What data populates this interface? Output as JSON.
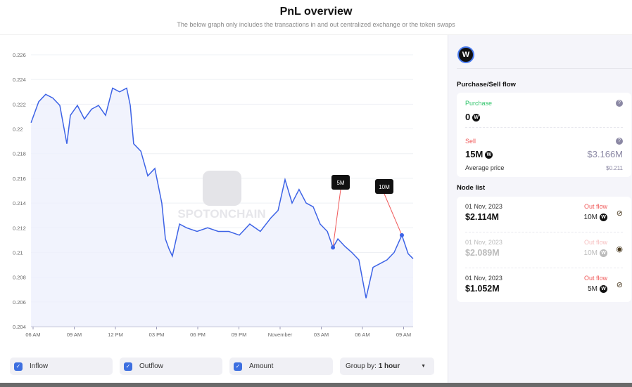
{
  "header": {
    "title": "PnL overview",
    "subtitle": "The below graph only includes the transactions in and out centralized exchange or the token swaps"
  },
  "chart_data": {
    "type": "line",
    "title": "",
    "xlabel": "",
    "ylabel": "",
    "ylim": [
      0.204,
      0.226
    ],
    "y_ticks": [
      "0.204",
      "0.206",
      "0.208",
      "0.21",
      "0.212",
      "0.214",
      "0.216",
      "0.218",
      "0.22",
      "0.222",
      "0.224",
      "0.226"
    ],
    "x_ticks": [
      {
        "t": 0,
        "label": "06 AM"
      },
      {
        "t": 3,
        "label": "09 AM"
      },
      {
        "t": 6,
        "label": "12 PM"
      },
      {
        "t": 9,
        "label": "03 PM"
      },
      {
        "t": 12,
        "label": "06 PM"
      },
      {
        "t": 15,
        "label": "09 PM"
      },
      {
        "t": 18,
        "label": "November"
      },
      {
        "t": 21,
        "label": "03 AM"
      },
      {
        "t": 24,
        "label": "06 AM"
      },
      {
        "t": 27,
        "label": "09 AM"
      }
    ],
    "xlim": [
      -0.15,
      27.7
    ],
    "x_unit": "hours since 06 AM",
    "series": [
      {
        "name": "Price",
        "color": "#3d63e6",
        "x": [
          -0.15,
          0.41,
          0.92,
          1.44,
          1.95,
          2.46,
          2.72,
          3.23,
          3.74,
          4.26,
          4.77,
          5.28,
          5.79,
          6.31,
          6.82,
          7.08,
          7.33,
          7.85,
          8.36,
          8.87,
          9.38,
          9.64,
          9.9,
          10.15,
          10.67,
          11.18,
          11.95,
          12.72,
          13.49,
          14.26,
          15.03,
          15.79,
          16.56,
          17.33,
          17.85,
          18.36,
          18.87,
          19.38,
          19.9,
          20.41,
          20.92,
          21.44,
          21.85,
          22.21,
          22.72,
          23.23,
          23.74,
          24.26,
          24.77,
          25.28,
          25.79,
          26.31,
          26.87,
          27.33,
          27.69
        ],
        "y": [
          0.2205,
          0.2222,
          0.2228,
          0.2225,
          0.2219,
          0.2188,
          0.2211,
          0.2219,
          0.2208,
          0.2216,
          0.2219,
          0.2211,
          0.2233,
          0.223,
          0.2233,
          0.2219,
          0.2188,
          0.2182,
          0.2162,
          0.2168,
          0.214,
          0.2111,
          0.2103,
          0.2097,
          0.2123,
          0.212,
          0.2117,
          0.212,
          0.2117,
          0.2117,
          0.2114,
          0.2123,
          0.2117,
          0.2128,
          0.2134,
          0.2159,
          0.214,
          0.2151,
          0.214,
          0.2137,
          0.2123,
          0.2117,
          0.2104,
          0.2111,
          0.2105,
          0.21,
          0.2094,
          0.2063,
          0.2088,
          0.2091,
          0.2094,
          0.21,
          0.2114,
          0.2099,
          0.2095
        ]
      }
    ],
    "annotations": [
      {
        "label": "5M",
        "x": 21.85,
        "y": 0.2104
      },
      {
        "label": "10M",
        "x": 26.87,
        "y": 0.2114
      }
    ],
    "watermark": "SPOTONCHAIN",
    "grid": true
  },
  "controls": {
    "inflow": "Inflow",
    "outflow": "Outflow",
    "amount": "Amount",
    "group_prefix": "Group by:",
    "group_value": "1 hour"
  },
  "sidebar": {
    "token_symbol": "W",
    "flow_title": "Purchase/Sell flow",
    "purchase_label": "Purchase",
    "purchase_amount": "0",
    "sell_label": "Sell",
    "sell_amount": "15M",
    "sell_value": "$3.166M",
    "avg_label": "Average price",
    "avg_value": "$0.211",
    "node_title": "Node list",
    "nodes": [
      {
        "date": "01 Nov, 2023",
        "value": "$2.114M",
        "flow": "Out flow",
        "amount": "10M",
        "hidden": false
      },
      {
        "date": "01 Nov, 2023",
        "value": "$2.089M",
        "flow": "Out flow",
        "amount": "10M",
        "hidden": true
      },
      {
        "date": "01 Nov, 2023",
        "value": "$1.052M",
        "flow": "Out flow",
        "amount": "5M",
        "hidden": false
      }
    ]
  }
}
